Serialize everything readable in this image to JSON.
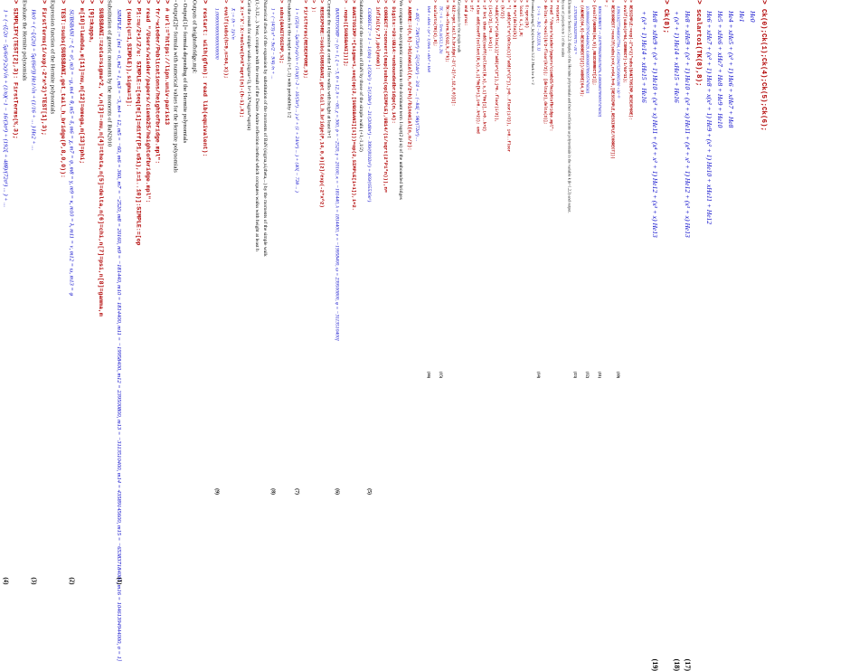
{
  "columns": [
    {
      "lines": [
        {
          "k": "cmd",
          "t": "restart: with(gfun): read lib(equivalent):"
        },
        {
          "k": "text",
          "t": "Outputs of heightofbridge.mpl:"
        },
        {
          "k": "text",
          "t": "- Output[1]= formula depending of the Hermite polynomials"
        },
        {
          "k": "text",
          "t": "- Output[2]= formula with numerical values for the Hermite polynomials"
        },
        {
          "k": "cmd",
          "t": "# url:=\"https://lipn.univ-paris13"
        },
        {
          "k": "cmd",
          "t": "fr/~wieder/Publications/heightofbridge.mpl\":"
        },
        {
          "k": "cmd",
          "t": "read \"/Users/wieder/papers/ciemb25/heightofbridge.mpl\":"
        },
        {
          "k": "cmd",
          "t": "P1:=u/2+1/2/u: SIMPLE:=[seq(m[i]=diff(P1,u$i),i=1..10)]:SIMPLE:=[op"
        },
        {
          "k": "cmd",
          "t": "(subs(u=1,SIMPLE)),sigma=1]:"
        },
        {
          "k": "eqn",
          "t": "SIMPLE := [m1 = 0, m2 = 1, m3 = −3, m4 = 12, m5 = −60, m6 = 360, m7 = −2520, m8 = 20160, m9 = −181440, m10 = 1814400, m11 = −19958400, m12 = 239500800, m13 = −3113510400, m14 = 43589145600, m15 = −653837184000, m16 = 10461394944000, σ = 1]",
          "n": "(1)"
        },
        {
          "k": "text",
          "t": "Substitution of generic moments by the moments of BaN2010"
        },
        {
          "k": "cmd",
          "t": "SUBSBANI:=zeta=sigma^2, v,n[3]=-mu,n[4]=theta,n[5]=delta,n[6]=chi,n[7]=psi,n[8]=gamma,m"
        },
        {
          "k": "cmd",
          "t": "[9]=kappa,"
        },
        {
          "k": "cmd",
          "t": "m[10]=lambda,m[11]=nu,m[12]=omega,m[13]=phi;"
        },
        {
          "k": "eqn",
          "t": "SUBSBANI := ξ = σ², m3 = −μ, m4 = θ, m5 = δ, m6 = χ, m7 = ψ, m8 = γ, m9 = κ, m10 = λ, m11 = ν, m12 = ω, m13 = φ",
          "n": "(2)"
        },
        {
          "k": "cmd",
          "t": "TEST:=subs(SUBSBANI,get_tail_h_bridge(P,8,0,0)):"
        },
        {
          "k": "text",
          "t": "Expression function of the Hermite polynomials"
        },
        {
          "k": "cmd",
          "t": "FirstTerms(1/exp(-2*x^2)*TEST[1],3);"
        },
        {
          "k": "eqn",
          "t": "He0 + (−ξ/(2σ) + 5μ/(6σ³)) He1/√n + (1/16 + ... ) He2 + ... ",
          "n": "(3)"
        },
        {
          "k": "text",
          "t": "Evaluate the Hermite polynomials"
        },
        {
          "k": "cmd",
          "t": "SIMPLIFY(TEST[2],3): FirstTerms(%,3);"
        },
        {
          "k": "eqn",
          "t": "1 + (−(ξ/2σ − 5μ/6σ³)·2x)/√n + (1/n)(−1 − 16/(3σ⁴) + (192ξ + 48θ)/(72σ⁶) ... ) + ...",
          "n": "(4)"
        }
      ]
    },
    {
      "lines": [
        {
          "k": "eqn",
          "t": "+ 40ξ² − 72θ/(72σ⁴) + 5ξ²/(24σ⁶) − 3/4 + ... (−84ξ + 9θ)/(72σ⁴) ... "
        },
        {
          "k": "cmd",
          "t": "ANDRE:=(n,h)->binomial(n,n/2+h)/binomial(n,n/2):"
        },
        {
          "k": "text",
          "t": "We compute the asymptotic correction to the dominant term 1/sqrt(2 pi n) of the unbounded bridges"
        },
        {
          "k": "cmd",
          "t": "Digits:=20:UB14:=unboundedbridge(n,14):"
        },
        {
          "k": "cmd",
          "t": "CORRECT:=convert(map(subs(op(SIMPLE),UB14/(1/sqrt(2*Pi*n))),n="
        },
        {
          "k": "cmd",
          "t": "infinity,7),polynom):"
        },
        {
          "k": "eqn",
          "t": "CORRECT := 1 − 1/(4n) + 1/(32n²) + 5/(128n³) − 21/(2048n⁴) − 399/(8192n⁵) + 869/(65536n⁶)",
          "n": "(5)"
        },
        {
          "k": "text",
          "t": "Substitution of the moments of BaN by those of the simple walk (+1,-1,1/2)"
        },
        {
          "k": "cmd",
          "t": "BANITOSIMP:=[sigma=1,seq(op(2,[SUBSBANI][i]))=op(2,SIMPLE[i+1]),i=2."
        },
        {
          "k": "cmd",
          "t": ".nops([SUBSBANI]))];"
        },
        {
          "k": "eqn",
          "t": "BANITOSIMP := [σ = 1, ξ = −3, θ = 12, δ = −60, χ = 360, ψ = −2520, γ = 20160, κ = −181440, λ = 1814400, ν = −19958400, ω = 239500800, φ = −3113510400]",
          "n": "(6)"
        },
        {
          "k": "text",
          "t": "Compute the expansion at order 14 for walks with height at least h+1"
        },
        {
          "k": "cmd",
          "t": "RESEXPORE:=subs(SUBSBANI,get_tail_h_bridge(P,14,0,0)[2]/exp(-2*x^2)"
        },
        {
          "k": "cmd",
          "t": "):"
        },
        {
          "k": "cmd",
          "t": "FirstTerms(RESEXPORE,3);"
        },
        {
          "k": "eqn",
          "t": "1 + ((2ξ/σ − 5μ/3σ³)·x)/√n + (1/n)((−2 − 16/(3σ⁴) ... ) x² + (1 + 24/σ⁴) ... ) + (40ξ − 72θ ... )",
          "n": "(7)"
        },
        {
          "k": "text",
          "t": "Evaluation for the simple walk (+1,-1) with probability 1/2"
        },
        {
          "k": "cmd",
          "t": "subs(BANITOSIMP,%);"
        },
        {
          "k": "eqn",
          "t": "1 + (−(4/3) x³ + 9x/2 − 9/4) /n  +  ...",
          "n": "(8)"
        },
        {
          "k": "text",
          "t": "Numerical check of the expansion by substitution of the moments of BaN (sigma,xi,theta,...) by the moments of the simple walk"
        },
        {
          "k": "text",
          "t": "(1,-3,12,...). Next, compare with the result of the Desire Andre reflection method which computes walks with height at least h"
        },
        {
          "k": "text",
          "t": "Get the result for simple walks (sigma=1), h=1+X*sigma*sqrt(n)"
        },
        {
          "k": "cmd",
          "t": "X:='X':X:=solve(h=X*sqrt(n)-(h-1),X);"
        },
        {
          "k": "eqn",
          "t": "X := (h − 1)/√n"
        },
        {
          "k": "cmd",
          "t": "evalf(subs(h=9,n=64,X));"
        },
        {
          "k": "eqn",
          "t": "1.0000000000000000000",
          "n": "(9)"
        }
      ]
    },
    {
      "lines": [
        {
          "k": "cmd",
          "t": "RESSIMPLE:=exp(-2*x^2)*subs(BANITOSIMP,RESEXPORE):"
        },
        {
          "k": "cmd",
          "t": "evalf(subs(n=64,CORRECT)-1/64^11);"
        },
        {
          "k": "eqn",
          "t": "0.99611027736468367704, 1.453394152836865180 ×10⁻¹³",
          "n": "(10)"
        },
        {
          "k": "cmd",
          "t": "RESCORRECT:=evalf(subs(x=X,n=64,h=9,[RESSIMPLE,RESSIMPLE/CORRECT]))"
        },
        {
          "k": "cmd",
          "t": ";"
        },
        {
          "k": "eqn",
          "t": "RESCORRECT := [0.07978842854576076, 0.08006837890957476030]",
          "n": "(11)"
        },
        {
          "k": "cmd",
          "t": "[evalf(ANDRE(64,9)),RESCORRECT[2]];"
        },
        {
          "k": "eqn",
          "t": "[0.08006683787454468429, 0.08006837890957476030]",
          "n": "(12)"
        },
        {
          "k": "cmd",
          "t": "(ANDRE(64,9)-RESCORRECT[2])/ANDRE(64,9);"
        },
        {
          "k": "eqn",
          "t": "2.370181706320299173 ×10⁻⁶",
          "n": "(13)"
        },
        {
          "k": "text",
          "t": "Elements for Section 5.2.3: display of the Hermite polynomials and their coefficients as polynomials in the variable k (k=1,2,3) and output."
        },
        {
          "k": "text",
          "t": "by use of projection to 1 of the scales"
        },
        {
          "k": "cmd",
          "t": "restart:"
        },
        {
          "k": "cmd",
          "t": "read \"/Users/wieder/papers/ciemb25/heightofbridge.mpl\":"
        },
        {
          "k": "cmd",
          "t": "delta:=k->ceil(k/2-floor(k/2)); [delta(2),delta(3)];"
        },
        {
          "k": "eqn",
          "t": "δ := k → ⌈k/2 − ⌊k/2⌋⌉   [0, 1]",
          "n": "(14)"
        },
        {
          "k": "text",
          "t": "Formula giving C_k(x) in Section 5.2.2.   Hack for k = 2"
        },
        {
          "k": "cmd",
          "t": "C:=proc(k)"
        },
        {
          "k": "cmd",
          "t": "  local s,i,j,R;"
        },
        {
          "k": "cmd",
          "t": "  R:=x^(delta(k))"
        },
        {
          "k": "cmd",
          "t": "    *( add(x^i*x^(delta(i))*add(x^(2*j),j=0..floor(i/2)),  i=0..floor"
        },
        {
          "k": "cmd",
          "t": "(k/2))"
        },
        {
          "k": "cmd",
          "t": "       +add(x^i*x^(delta(i))*add(x^(2*j),j=0..floor(i/2)),"
        },
        {
          "k": "cmd",
          "t": "(i+1)/2),i=0..k+1)):"
        },
        {
          "k": "cmd",
          "t": "  if k=1 then add(coeff(collect(R,s),s,i)*He[i],i=0..k+2)"
        },
        {
          "k": "cmd",
          "t": "  else      add(coeff(collect(R,s),s,i)*He[k+i],i=0..k+2)); end"
        },
        {
          "k": "cmd",
          "t": "  if;"
        },
        {
          "k": "cmd",
          "t": "end proc:"
        },
        {
          "k": "text",
          "t": "Get expansion for the simple walk"
        },
        {
          "k": "cmd",
          "t": "G12:=get_tail_h_bridge(-2/(-2)/r,12,0,0)[1]:"
        },
        {
          "k": "cmd",
          "t": "TK:=k->Term_k(G12,k,2*k);"
        },
        {
          "k": "eqn",
          "t": "TK := k → Term_k(G12, k, 2k)",
          "n": "(15)"
        },
        {
          "k": "cmd",
          "t": "scalarto(TK(4),8);"
        },
        {
          "k": "eqn",
          "t": "He8 + xHe6 + (x² + 1) He6 + xHe7 + He8",
          "n": "(16)"
        }
      ]
    },
    {
      "lines": [
        {
          "k": "cmd",
          "t": "Ck(0);Ck(1);Ck(4);Ck(5);Ck(6);"
        },
        {
          "k": "eqn",
          "t": "He0"
        },
        {
          "k": "eqn",
          "t": "He1"
        },
        {
          "k": "eqn",
          "t": "He4 + xHe5 + (x² + 1) He6 + xHe7 + He8"
        },
        {
          "k": "eqn",
          "t": "He5 + xHe6 + xHe7 + He8 + He9 + He10"
        },
        {
          "k": "eqn",
          "t": "He6 + xHe7 + (x² + 1) He8 + x(x² + 1) He9 + (x² + 1) He10 + xHe11 + He12"
        },
        {
          "k": "cmd",
          "t": "scalarto1(TK(8),8);"
        },
        {
          "k": "eqn",
          "t": "He8 + xHe9 + (x² + 1) He10 + (x³ + x) He11 + (x⁴ + x² + 1) He12 + (x³ + x) He13",
          "n": "(17)"
        },
        {
          "k": "eqn",
          "t": "+ (x² + 1) He14 + xHe15 + He16",
          "n": "(18)"
        },
        {
          "k": "cmd",
          "t": "Ck(8);"
        },
        {
          "k": "eqn",
          "t": "He8 + xHe9 + (x² + 1) He10 + (x³ + x) He11 + (x⁴ + x² + 1) He12 + (x³ + x) He13",
          "n": "(19)"
        },
        {
          "k": "eqn",
          "t": "+ (x² + 1) He14 + xHe15 + He16"
        }
      ]
    }
  ]
}
